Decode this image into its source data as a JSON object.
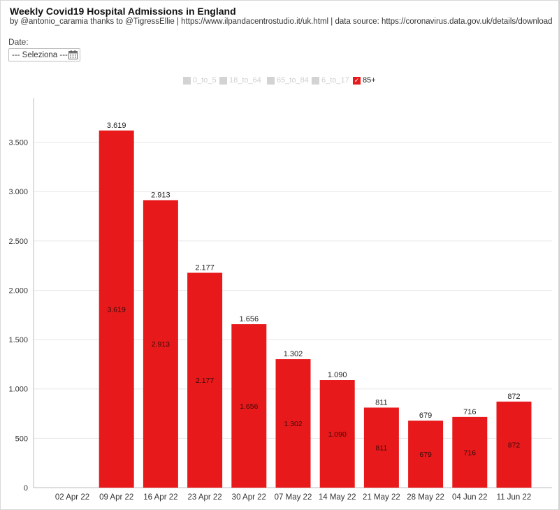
{
  "header": {
    "title": "Weekly Covid19 Hospital Admissions in England",
    "subtitle": "by @antonio_caramia thanks to @TigressEllie | https://www.ilpandacentrostudio.it/uk.html | data source: https://coronavirus.data.gov.uk/details/download"
  },
  "filter": {
    "date_label": "Date:",
    "date_value": "--- Seleziona ---",
    "icon": "calendar-icon"
  },
  "legend": [
    {
      "label": "0_to_5",
      "active": false
    },
    {
      "label": "18_to_64",
      "active": false
    },
    {
      "label": "65_to_84",
      "active": false
    },
    {
      "label": "6_to_17",
      "active": false
    },
    {
      "label": "85+",
      "active": true,
      "check": "✓"
    }
  ],
  "colors": {
    "bar": "#e8191b",
    "inactive": "#d3d3d3",
    "grid": "#e6e6e6"
  },
  "chart_data": {
    "type": "bar",
    "categories": [
      "02 Apr 22",
      "09 Apr 22",
      "16 Apr 22",
      "23 Apr 22",
      "30 Apr 22",
      "07 May 22",
      "14 May 22",
      "21 May 22",
      "28 May 22",
      "04 Jun 22",
      "11 Jun 22"
    ],
    "series": [
      {
        "name": "85+",
        "values": [
          null,
          3619,
          2913,
          2177,
          1656,
          1302,
          1090,
          811,
          679,
          716,
          872
        ],
        "value_labels": [
          "",
          "3.619",
          "2.913",
          "2.177",
          "1.656",
          "1.302",
          "1.090",
          "811",
          "679",
          "716",
          "872"
        ]
      }
    ],
    "yticks": [
      0,
      500,
      1000,
      1500,
      2000,
      2500,
      3000,
      3500
    ],
    "ytick_labels": [
      "0",
      "500",
      "1.000",
      "1.500",
      "2.000",
      "2.500",
      "3.000",
      "3.500"
    ],
    "ylim": [
      0,
      3950
    ],
    "grid": true,
    "legend_position": "top-center",
    "title": "",
    "xlabel": "",
    "ylabel": ""
  }
}
